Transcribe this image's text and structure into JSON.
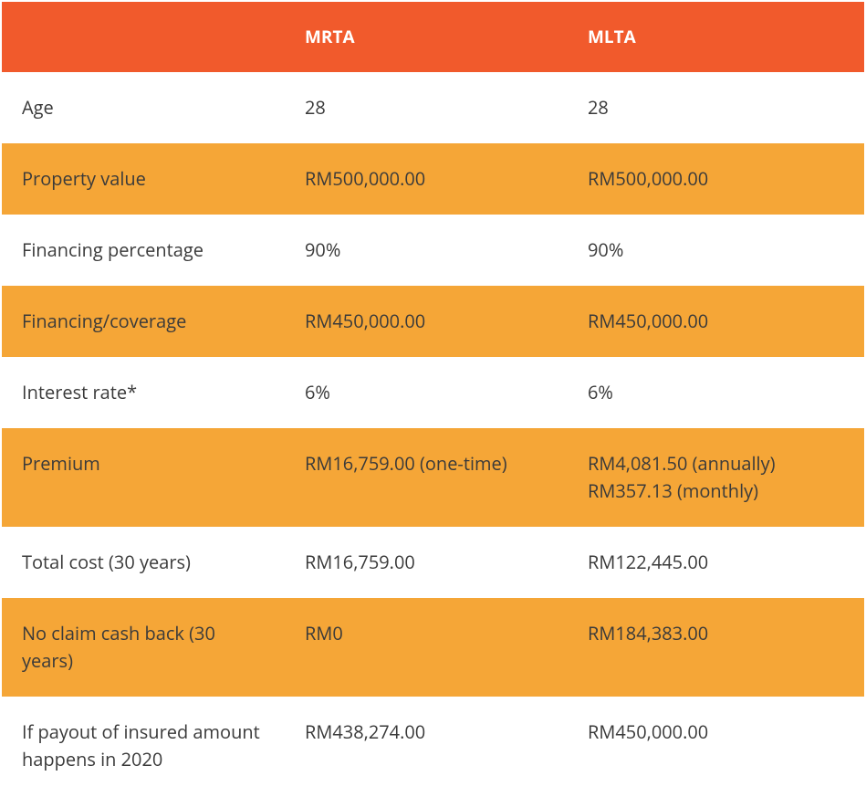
{
  "colors": {
    "header_bg": "#f15a2c",
    "header_text": "#ffffff",
    "row_alt_bg": "#f5a637",
    "row_bg": "#ffffff",
    "text": "#3a3a3a"
  },
  "columns": [
    {
      "label": ""
    },
    {
      "label": "MRTA"
    },
    {
      "label": "MLTA"
    }
  ],
  "col_widths": [
    "310px",
    "310px",
    "325px"
  ],
  "rows": [
    {
      "label": "Age",
      "mrta": "28",
      "mlta": "28",
      "alt": false
    },
    {
      "label": "Property value",
      "mrta": "RM500,000.00",
      "mlta": "RM500,000.00",
      "alt": true
    },
    {
      "label": "Financing percentage",
      "mrta": "90%",
      "mlta": "90%",
      "alt": false
    },
    {
      "label": "Financing/coverage",
      "mrta": "RM450,000.00",
      "mlta": "RM450,000.00",
      "alt": true
    },
    {
      "label": "Interest rate*",
      "mrta": "6%",
      "mlta": "6%",
      "alt": false
    },
    {
      "label": "Premium",
      "mrta": "RM16,759.00 (one-time)",
      "mlta": "RM4,081.50 (annually)\nRM357.13 (monthly)",
      "alt": true
    },
    {
      "label": "Total cost (30 years)",
      "mrta": "RM16,759.00",
      "mlta": "RM122,445.00",
      "alt": false
    },
    {
      "label": "No claim cash back (30 years)",
      "mrta": "RM0",
      "mlta": "RM184,383.00",
      "alt": true
    },
    {
      "label": "If payout of insured amount happens in 2020",
      "mrta": "RM438,274.00",
      "mlta": "RM450,000.00",
      "alt": false
    }
  ]
}
